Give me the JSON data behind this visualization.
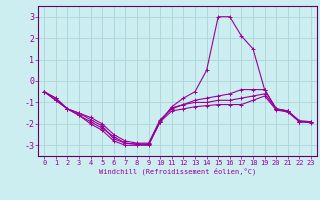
{
  "xlabel": "Windchill (Refroidissement éolien,°C)",
  "background_color": "#cceef0",
  "grid_color": "#aad4d8",
  "line_color": "#990099",
  "spine_color": "#660066",
  "xlim": [
    -0.5,
    23.5
  ],
  "ylim": [
    -3.5,
    3.5
  ],
  "yticks": [
    -3,
    -2,
    -1,
    0,
    1,
    2,
    3
  ],
  "xticks": [
    0,
    1,
    2,
    3,
    4,
    5,
    6,
    7,
    8,
    9,
    10,
    11,
    12,
    13,
    14,
    15,
    16,
    17,
    18,
    19,
    20,
    21,
    22,
    23
  ],
  "lines": [
    {
      "x": [
        0,
        1,
        2,
        3,
        4,
        5,
        6,
        7,
        8,
        9,
        10,
        11,
        12,
        13,
        14,
        15,
        16,
        17,
        18,
        19,
        20,
        21,
        22,
        23
      ],
      "y": [
        -0.5,
        -0.8,
        -1.3,
        -1.5,
        -1.8,
        -2.1,
        -2.7,
        -2.9,
        -2.95,
        -2.95,
        -1.9,
        -1.2,
        -0.8,
        -0.5,
        0.5,
        3.0,
        3.0,
        2.1,
        1.5,
        -0.4,
        -1.3,
        -1.4,
        -1.9,
        -1.9
      ]
    },
    {
      "x": [
        0,
        1,
        2,
        3,
        4,
        5,
        6,
        7,
        8,
        9,
        10,
        11,
        12,
        13,
        14,
        15,
        16,
        17,
        18,
        19,
        20,
        21,
        22,
        23
      ],
      "y": [
        -0.5,
        -0.8,
        -1.3,
        -1.5,
        -1.7,
        -2.0,
        -2.5,
        -2.8,
        -2.9,
        -2.9,
        -1.8,
        -1.3,
        -1.1,
        -0.9,
        -0.8,
        -0.7,
        -0.6,
        -0.4,
        -0.4,
        -0.4,
        -1.3,
        -1.4,
        -1.9,
        -1.9
      ]
    },
    {
      "x": [
        0,
        1,
        2,
        3,
        4,
        5,
        6,
        7,
        8,
        9,
        10,
        11,
        12,
        13,
        14,
        15,
        16,
        17,
        18,
        19,
        20,
        21,
        22,
        23
      ],
      "y": [
        -0.5,
        -0.9,
        -1.3,
        -1.6,
        -1.9,
        -2.2,
        -2.6,
        -2.9,
        -2.95,
        -2.95,
        -1.85,
        -1.25,
        -1.1,
        -1.0,
        -1.0,
        -0.9,
        -0.9,
        -0.8,
        -0.7,
        -0.6,
        -1.3,
        -1.4,
        -1.85,
        -1.9
      ]
    },
    {
      "x": [
        0,
        1,
        2,
        3,
        4,
        5,
        6,
        7,
        8,
        9,
        10,
        11,
        12,
        13,
        14,
        15,
        16,
        17,
        18,
        19,
        20,
        21,
        22,
        23
      ],
      "y": [
        -0.5,
        -0.9,
        -1.3,
        -1.6,
        -2.0,
        -2.3,
        -2.8,
        -3.0,
        -3.0,
        -3.0,
        -1.9,
        -1.4,
        -1.3,
        -1.2,
        -1.15,
        -1.1,
        -1.1,
        -1.1,
        -0.9,
        -0.7,
        -1.35,
        -1.45,
        -1.9,
        -1.95
      ]
    }
  ],
  "tick_fontsize": 5,
  "xlabel_fontsize": 5,
  "marker_size": 2.5,
  "linewidth": 0.8
}
